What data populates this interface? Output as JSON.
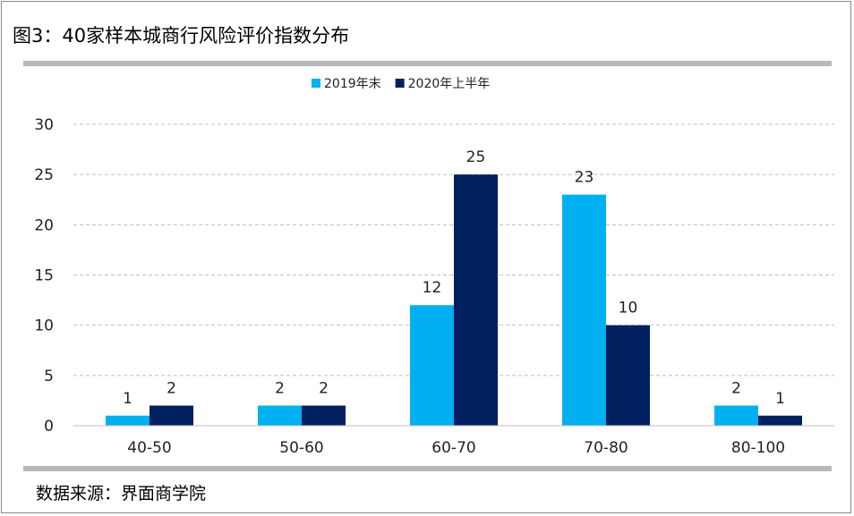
{
  "title": "图3：40家样本城商行风险评价指数分布",
  "source": "数据来源：界面商学院",
  "colors": {
    "series1": "#00b0f0",
    "series2": "#002060",
    "grid": "#bfbfbf",
    "rule": "#b8b8b8"
  },
  "chart_data": {
    "type": "bar",
    "categories": [
      "40-50",
      "50-60",
      "60-70",
      "70-80",
      "80-100"
    ],
    "series": [
      {
        "name": "2019年末",
        "values": [
          1,
          2,
          12,
          23,
          2
        ]
      },
      {
        "name": "2020年上半年",
        "values": [
          2,
          2,
          25,
          10,
          1
        ]
      }
    ],
    "ylim": [
      0,
      30
    ],
    "yticks": [
      0,
      5,
      10,
      15,
      20,
      25,
      30
    ],
    "grid": true,
    "legend": "top-center",
    "data_labels": true
  }
}
